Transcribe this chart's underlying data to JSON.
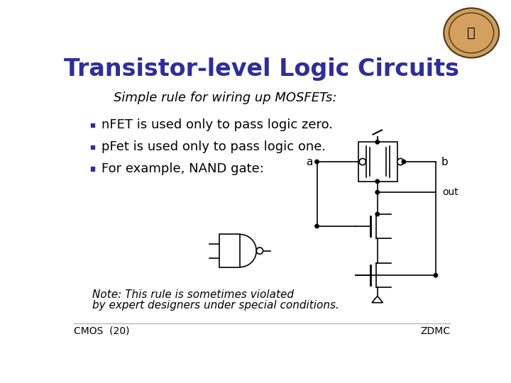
{
  "title": "Transistor-level Logic Circuits",
  "title_color": "#2e2e99",
  "title_fontsize": 24,
  "subtitle": "Simple rule for wiring up MOSFETs:",
  "subtitle_fontsize": 13,
  "bullet_points": [
    "nFET is used only to pass logic zero.",
    "pFet is used only to pass logic one.",
    "For example, NAND gate:"
  ],
  "bullet_fontsize": 13,
  "bullet_color": "#000000",
  "bullet_marker_color": "#2e2e99",
  "note_line1": "Note: This rule is sometimes violated",
  "note_line2": "by expert designers under special conditions.",
  "note_fontsize": 11,
  "footer_left": "CMOS  (20)",
  "footer_right": "ZDMC",
  "footer_fontsize": 10,
  "background_color": "#ffffff"
}
